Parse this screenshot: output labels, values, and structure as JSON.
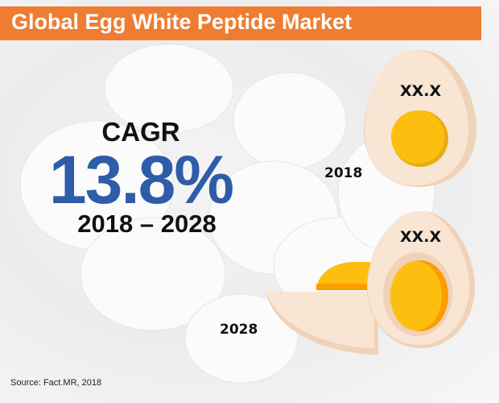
{
  "title": "Global Egg White Peptide Market",
  "cagr": {
    "label": "CAGR",
    "value": "13.8%",
    "period": "2018 – 2028"
  },
  "eggs": [
    {
      "year": "2018",
      "value": "XX.X"
    },
    {
      "year": "2028",
      "value": "XX.X"
    }
  ],
  "source": "Source: Fact.MR, 2018",
  "colors": {
    "title_bar": "#ee7d31",
    "cagr_value": "#2e5ca8",
    "yolk": "#fdbf0f",
    "egg_white": "#f9e5d3"
  }
}
